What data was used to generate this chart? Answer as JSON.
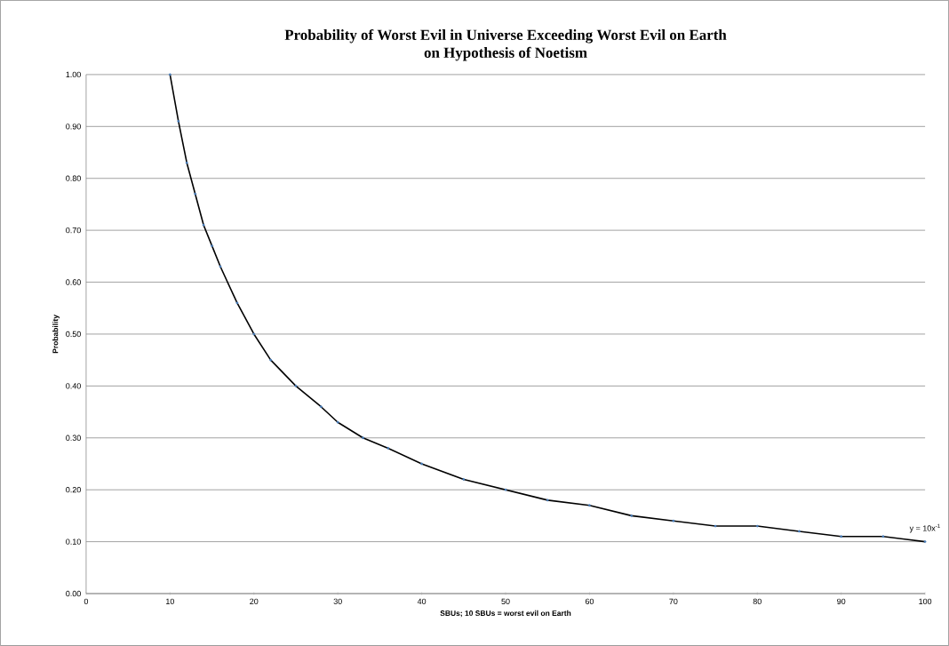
{
  "chart_data": {
    "type": "line",
    "title": "Probability of Worst Evil in Universe Exceeding Worst Evil on Earth\non Hypothesis of Noetism",
    "xlabel": "SBUs; 10 SBUs = worst evil on Earth",
    "ylabel": "Probability",
    "x": [
      10,
      11,
      12,
      13,
      14,
      15,
      16,
      18,
      20,
      22,
      25,
      28,
      30,
      33,
      36,
      40,
      45,
      50,
      55,
      60,
      65,
      70,
      75,
      80,
      85,
      90,
      95,
      100
    ],
    "series": [
      {
        "type": "scatter",
        "color": "#4a7ebb",
        "marker": "circle",
        "values": [
          1.0,
          0.91,
          0.83,
          0.77,
          0.71,
          0.67,
          0.63,
          0.56,
          0.5,
          0.45,
          0.4,
          0.36,
          0.33,
          0.3,
          0.28,
          0.25,
          0.22,
          0.2,
          0.18,
          0.17,
          0.15,
          0.14,
          0.13,
          0.13,
          0.12,
          0.11,
          0.11,
          0.1
        ]
      },
      {
        "color": "#000000",
        "values": [
          1.0,
          0.91,
          0.83,
          0.77,
          0.71,
          0.67,
          0.63,
          0.56,
          0.5,
          0.45,
          0.4,
          0.36,
          0.33,
          0.3,
          0.28,
          0.25,
          0.22,
          0.2,
          0.18,
          0.17,
          0.15,
          0.14,
          0.13,
          0.13,
          0.12,
          0.11,
          0.11,
          0.1
        ]
      }
    ],
    "annotations": [
      {
        "text": "y = 10x$^{-1}$",
        "x": 100,
        "y": 0.1
      }
    ],
    "xlim": [
      0,
      100
    ],
    "ylim": [
      0,
      1
    ],
    "xticks": [
      0,
      10,
      20,
      30,
      40,
      50,
      60,
      70,
      80,
      90,
      100
    ],
    "yticks": [
      {
        "value": 0,
        "label": "0.00"
      },
      {
        "value": 0.1,
        "label": "0.10"
      },
      {
        "value": 0.2,
        "label": "0.20"
      },
      {
        "value": 0.3,
        "label": "0.30"
      },
      {
        "value": 0.4,
        "label": "0.40"
      },
      {
        "value": 0.5,
        "label": "0.50"
      },
      {
        "value": 0.6,
        "label": "0.60"
      },
      {
        "value": 0.7,
        "label": "0.70"
      },
      {
        "value": 0.8,
        "label": "0.80"
      },
      {
        "value": 0.9,
        "label": "0.90"
      },
      {
        "value": 1,
        "label": "1.00"
      }
    ],
    "grid": "y"
  }
}
